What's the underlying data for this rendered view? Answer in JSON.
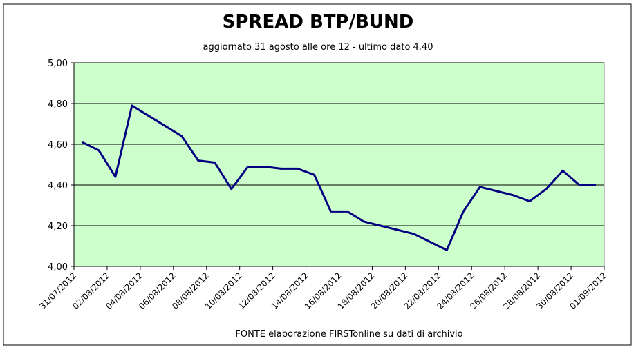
{
  "chart_data": {
    "type": "line",
    "title": "SPREAD  BTP/BUND",
    "subtitle": "aggiornato 31 agosto alle ore 12  -  ultimo dato 4,40",
    "footer": "FONTE elaborazione FIRSTonline su dati di archivio",
    "x": [
      "31/07/2012",
      "01/08/2012",
      "02/08/2012",
      "03/08/2012",
      "04/08/2012",
      "05/08/2012",
      "06/08/2012",
      "07/08/2012",
      "08/08/2012",
      "09/08/2012",
      "10/08/2012",
      "11/08/2012",
      "12/08/2012",
      "13/08/2012",
      "14/08/2012",
      "15/08/2012",
      "16/08/2012",
      "17/08/2012",
      "18/08/2012",
      "19/08/2012",
      "20/08/2012",
      "21/08/2012",
      "22/08/2012",
      "23/08/2012",
      "24/08/2012",
      "25/08/2012",
      "26/08/2012",
      "27/08/2012",
      "28/08/2012",
      "29/08/2012",
      "30/08/2012",
      "31/08/2012"
    ],
    "series": [
      {
        "name": "Spread",
        "color": "#000080",
        "values": [
          4.61,
          4.57,
          4.44,
          4.79,
          4.74,
          4.69,
          4.64,
          4.52,
          4.51,
          4.38,
          4.49,
          4.49,
          4.48,
          4.48,
          4.45,
          4.27,
          4.27,
          4.22,
          4.2,
          4.18,
          4.16,
          4.12,
          4.08,
          4.27,
          4.39,
          4.37,
          4.35,
          4.32,
          4.38,
          4.47,
          4.4,
          4.4
        ]
      }
    ],
    "xlim": [
      "31/07/2012",
      "01/09/2012"
    ],
    "xticks": [
      "31/07/2012",
      "02/08/2012",
      "04/08/2012",
      "06/08/2012",
      "08/08/2012",
      "10/08/2012",
      "12/08/2012",
      "14/08/2012",
      "16/08/2012",
      "18/08/2012",
      "20/08/2012",
      "22/08/2012",
      "24/08/2012",
      "26/08/2012",
      "28/08/2012",
      "30/08/2012",
      "01/09/2012"
    ],
    "ylim": [
      4.0,
      5.0
    ],
    "yticks": [
      {
        "value": 4.0,
        "label": "4,00"
      },
      {
        "value": 4.2,
        "label": "4,20"
      },
      {
        "value": 4.4,
        "label": "4,40"
      },
      {
        "value": 4.6,
        "label": "4,60"
      },
      {
        "value": 4.8,
        "label": "4,80"
      },
      {
        "value": 5.0,
        "label": "5,00"
      }
    ],
    "grid": true,
    "plot_color": "#ccffcc"
  }
}
